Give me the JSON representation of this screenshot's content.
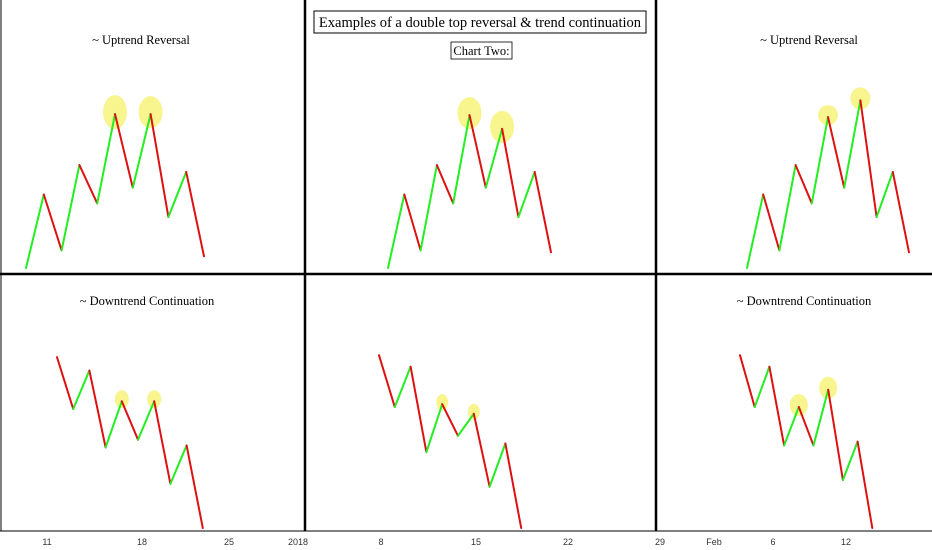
{
  "title": "Examples of a double top reversal & trend continuation",
  "subtitle": "Chart Two:",
  "colors": {
    "up": "#22ee22",
    "down": "#dd1111",
    "highlight": "#f7f27a",
    "subtitle": "#e11111",
    "grid": "#000000"
  },
  "panel_titles": {
    "top_left": "~ Uptrend Reversal",
    "top_right": "~ Uptrend Reversal",
    "bottom_left": "~ Downtrend Continuation",
    "bottom_right": "~ Downtrend Continuation"
  },
  "x_axis": {
    "ticks": [
      "11",
      "18",
      "25",
      "2018",
      "8",
      "15",
      "22",
      "29",
      "Feb",
      "6",
      "12"
    ]
  },
  "chart_data": [
    {
      "panel": "top-left",
      "type": "line",
      "title": "~ Uptrend Reversal",
      "x": [
        0,
        1,
        2,
        3,
        4,
        5,
        6,
        7,
        8,
        9,
        10,
        11
      ],
      "y": [
        0,
        7.5,
        1.8,
        10.5,
        6.6,
        15.7,
        8.2,
        15.7,
        5.2,
        9.8,
        1.2,
        null
      ],
      "double_top": [
        5,
        7
      ],
      "segment_colors": "green when rising, red when falling"
    },
    {
      "panel": "top-center",
      "type": "line",
      "x": [
        0,
        1,
        2,
        3,
        4,
        5,
        6,
        7,
        8,
        9,
        10
      ],
      "y": [
        0,
        7.5,
        1.8,
        10.5,
        6.6,
        15.6,
        8.2,
        14.2,
        5.2,
        9.8,
        1.6
      ],
      "double_top": [
        5,
        7
      ]
    },
    {
      "panel": "top-right",
      "type": "line",
      "title": "~ Uptrend Reversal",
      "x": [
        0,
        1,
        2,
        3,
        4,
        5,
        6,
        7,
        8,
        9,
        10,
        11
      ],
      "y": [
        0,
        7.5,
        1.8,
        10.5,
        6.6,
        15.4,
        8.2,
        17.1,
        5.2,
        9.8,
        1.6,
        null
      ],
      "double_top": [
        5,
        7
      ]
    },
    {
      "panel": "bottom-left",
      "type": "line",
      "title": "~ Downtrend Continuation",
      "x": [
        0,
        1,
        2,
        3,
        4,
        5,
        6,
        7,
        8,
        9,
        10
      ],
      "y": [
        17.8,
        12.4,
        16.4,
        8.4,
        13.2,
        9.2,
        13.2,
        4.6,
        8.6,
        0.0,
        null
      ],
      "double_top": [
        4,
        6
      ]
    },
    {
      "panel": "bottom-center",
      "type": "line",
      "x": [
        0,
        1,
        2,
        3,
        4,
        5,
        6,
        7,
        8,
        9
      ],
      "y": [
        18.0,
        12.6,
        16.8,
        7.9,
        12.9,
        9.6,
        11.9,
        4.3,
        8.8,
        0.0
      ],
      "double_top": [
        4,
        6
      ]
    },
    {
      "panel": "bottom-right",
      "type": "line",
      "title": "~ Downtrend Continuation",
      "x": [
        0,
        1,
        2,
        3,
        4,
        5,
        6,
        7,
        8,
        9,
        10,
        11
      ],
      "y": [
        18.0,
        12.6,
        16.8,
        8.6,
        12.6,
        8.6,
        14.4,
        5.0,
        9.0,
        0.0,
        null,
        null
      ],
      "double_top": [
        4,
        6
      ]
    }
  ]
}
